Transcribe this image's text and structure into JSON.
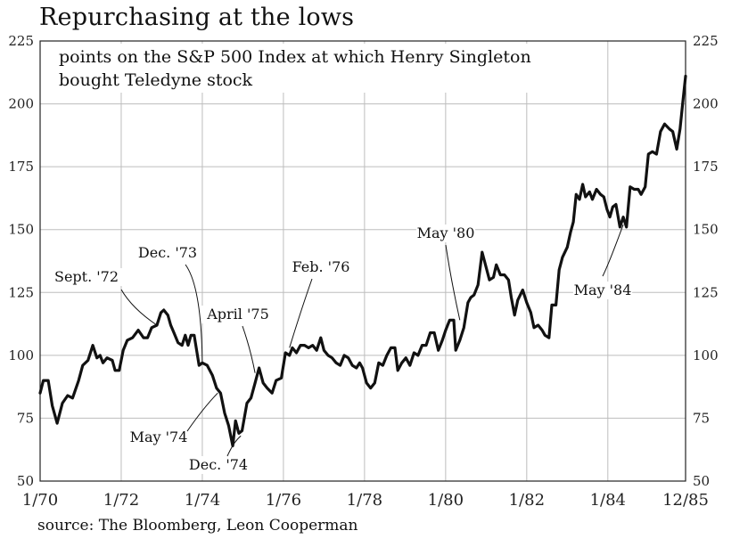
{
  "title": "Repurchasing at the lows",
  "source": "source: The Bloomberg, Leon Cooperman",
  "chart_data": {
    "type": "line",
    "subtitle": [
      "points on the S&P 500 Index at which Henry Singleton",
      "bought Teledyne stock"
    ],
    "xlabel": "",
    "ylabel": "",
    "ylim": [
      50,
      225
    ],
    "yticks": [
      50,
      75,
      100,
      125,
      150,
      175,
      200,
      225
    ],
    "xlim": [
      1970.0,
      1985.917
    ],
    "xticks": [
      {
        "label": "1/70",
        "value": 1970.0
      },
      {
        "label": "1/72",
        "value": 1972.0
      },
      {
        "label": "1/74",
        "value": 1974.0
      },
      {
        "label": "1/76",
        "value": 1976.0
      },
      {
        "label": "1/78",
        "value": 1978.0
      },
      {
        "label": "1/80",
        "value": 1980.0
      },
      {
        "label": "1/82",
        "value": 1982.0
      },
      {
        "label": "1/84",
        "value": 1984.0
      },
      {
        "label": "12/85",
        "value": 1985.917
      }
    ],
    "grid": true,
    "legend": "none",
    "series": [
      {
        "values": [
          [
            1970.0,
            85
          ],
          [
            1970.08,
            90
          ],
          [
            1970.2,
            90
          ],
          [
            1970.3,
            80
          ],
          [
            1970.42,
            73
          ],
          [
            1970.55,
            81
          ],
          [
            1970.68,
            84
          ],
          [
            1970.8,
            83
          ],
          [
            1970.95,
            90
          ],
          [
            1971.05,
            96
          ],
          [
            1971.18,
            98
          ],
          [
            1971.3,
            104
          ],
          [
            1971.4,
            99
          ],
          [
            1971.48,
            100
          ],
          [
            1971.55,
            97
          ],
          [
            1971.65,
            99
          ],
          [
            1971.78,
            98
          ],
          [
            1971.85,
            94
          ],
          [
            1971.95,
            94
          ],
          [
            1972.05,
            102
          ],
          [
            1972.15,
            106
          ],
          [
            1972.28,
            107
          ],
          [
            1972.42,
            110
          ],
          [
            1972.55,
            107
          ],
          [
            1972.65,
            107
          ],
          [
            1972.75,
            111
          ],
          [
            1972.88,
            112
          ],
          [
            1972.98,
            117
          ],
          [
            1973.05,
            118
          ],
          [
            1973.15,
            116
          ],
          [
            1973.22,
            112
          ],
          [
            1973.3,
            109
          ],
          [
            1973.4,
            105
          ],
          [
            1973.5,
            104
          ],
          [
            1973.58,
            108
          ],
          [
            1973.65,
            104
          ],
          [
            1973.72,
            108
          ],
          [
            1973.8,
            108
          ],
          [
            1973.85,
            103
          ],
          [
            1973.92,
            96
          ],
          [
            1974.0,
            97
          ],
          [
            1974.12,
            96
          ],
          [
            1974.25,
            92
          ],
          [
            1974.35,
            87
          ],
          [
            1974.45,
            85
          ],
          [
            1974.55,
            77
          ],
          [
            1974.65,
            72
          ],
          [
            1974.75,
            64
          ],
          [
            1974.82,
            74
          ],
          [
            1974.9,
            69
          ],
          [
            1974.98,
            70
          ],
          [
            1975.1,
            81
          ],
          [
            1975.2,
            83
          ],
          [
            1975.3,
            89
          ],
          [
            1975.4,
            95
          ],
          [
            1975.5,
            89
          ],
          [
            1975.6,
            87
          ],
          [
            1975.72,
            85
          ],
          [
            1975.82,
            90
          ],
          [
            1975.95,
            91
          ],
          [
            1976.05,
            101
          ],
          [
            1976.15,
            100
          ],
          [
            1976.22,
            103
          ],
          [
            1976.32,
            101
          ],
          [
            1976.42,
            104
          ],
          [
            1976.52,
            104
          ],
          [
            1976.62,
            103
          ],
          [
            1976.72,
            104
          ],
          [
            1976.82,
            102
          ],
          [
            1976.92,
            107
          ],
          [
            1977.0,
            102
          ],
          [
            1977.1,
            100
          ],
          [
            1977.2,
            99
          ],
          [
            1977.3,
            97
          ],
          [
            1977.4,
            96
          ],
          [
            1977.5,
            100
          ],
          [
            1977.6,
            99
          ],
          [
            1977.7,
            96
          ],
          [
            1977.8,
            95
          ],
          [
            1977.88,
            97
          ],
          [
            1977.95,
            95
          ],
          [
            1978.05,
            89
          ],
          [
            1978.15,
            87
          ],
          [
            1978.25,
            89
          ],
          [
            1978.35,
            97
          ],
          [
            1978.45,
            96
          ],
          [
            1978.55,
            100
          ],
          [
            1978.65,
            103
          ],
          [
            1978.75,
            103
          ],
          [
            1978.82,
            94
          ],
          [
            1978.92,
            97
          ],
          [
            1979.02,
            99
          ],
          [
            1979.12,
            96
          ],
          [
            1979.22,
            101
          ],
          [
            1979.32,
            100
          ],
          [
            1979.42,
            104
          ],
          [
            1979.52,
            104
          ],
          [
            1979.62,
            109
          ],
          [
            1979.72,
            109
          ],
          [
            1979.82,
            102
          ],
          [
            1979.92,
            106
          ],
          [
            1980.0,
            110
          ],
          [
            1980.1,
            114
          ],
          [
            1980.2,
            114
          ],
          [
            1980.25,
            102
          ],
          [
            1980.35,
            106
          ],
          [
            1980.45,
            111
          ],
          [
            1980.55,
            121
          ],
          [
            1980.62,
            123
          ],
          [
            1980.7,
            124
          ],
          [
            1980.8,
            128
          ],
          [
            1980.9,
            141
          ],
          [
            1981.0,
            135
          ],
          [
            1981.08,
            130
          ],
          [
            1981.18,
            131
          ],
          [
            1981.25,
            136
          ],
          [
            1981.35,
            132
          ],
          [
            1981.45,
            132
          ],
          [
            1981.55,
            130
          ],
          [
            1981.62,
            123
          ],
          [
            1981.7,
            116
          ],
          [
            1981.78,
            122
          ],
          [
            1981.9,
            126
          ],
          [
            1982.0,
            121
          ],
          [
            1982.1,
            117
          ],
          [
            1982.18,
            111
          ],
          [
            1982.28,
            112
          ],
          [
            1982.38,
            110
          ],
          [
            1982.45,
            108
          ],
          [
            1982.55,
            107
          ],
          [
            1982.62,
            120
          ],
          [
            1982.72,
            120
          ],
          [
            1982.8,
            134
          ],
          [
            1982.88,
            139
          ],
          [
            1983.0,
            143
          ],
          [
            1983.08,
            149
          ],
          [
            1983.15,
            153
          ],
          [
            1983.22,
            164
          ],
          [
            1983.3,
            162
          ],
          [
            1983.38,
            168
          ],
          [
            1983.45,
            163
          ],
          [
            1983.55,
            165
          ],
          [
            1983.62,
            162
          ],
          [
            1983.72,
            166
          ],
          [
            1983.82,
            164
          ],
          [
            1983.9,
            163
          ],
          [
            1983.98,
            158
          ],
          [
            1984.05,
            155
          ],
          [
            1984.12,
            159
          ],
          [
            1984.2,
            160
          ],
          [
            1984.3,
            151
          ],
          [
            1984.38,
            155
          ],
          [
            1984.46,
            151
          ],
          [
            1984.55,
            167
          ],
          [
            1984.65,
            166
          ],
          [
            1984.75,
            166
          ],
          [
            1984.82,
            164
          ],
          [
            1984.92,
            167
          ],
          [
            1985.0,
            180
          ],
          [
            1985.1,
            181
          ],
          [
            1985.2,
            180
          ],
          [
            1985.3,
            189
          ],
          [
            1985.4,
            192
          ],
          [
            1985.52,
            190
          ],
          [
            1985.6,
            189
          ],
          [
            1985.7,
            182
          ],
          [
            1985.78,
            190
          ],
          [
            1985.85,
            201
          ],
          [
            1985.917,
            211
          ]
        ]
      }
    ],
    "annotations": [
      {
        "text": "Sept. '72",
        "x": 1972.88,
        "y": 112
      },
      {
        "text": "Dec. '73",
        "x": 1974.0,
        "y": 97
      },
      {
        "text": "April '75",
        "x": 1975.3,
        "y": 93
      },
      {
        "text": "Feb. '76",
        "x": 1976.15,
        "y": 103
      },
      {
        "text": "May '80",
        "x": 1980.35,
        "y": 114
      },
      {
        "text": "May '74",
        "x": 1974.38,
        "y": 85
      },
      {
        "text": "Dec. '74",
        "x": 1974.95,
        "y": 68
      },
      {
        "text": "May '84",
        "x": 1984.38,
        "y": 152
      }
    ]
  }
}
